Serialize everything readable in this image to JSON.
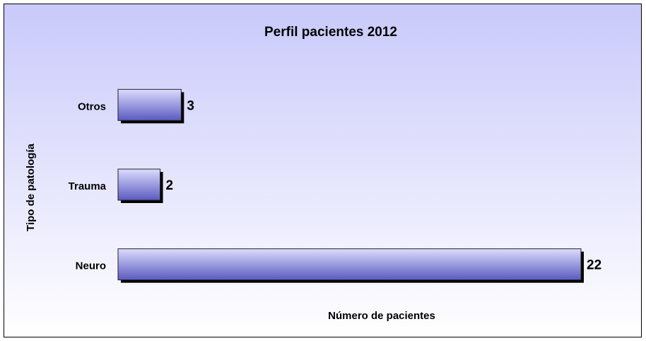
{
  "chart_data": {
    "type": "bar",
    "orientation": "horizontal",
    "title": "Perfil pacientes 2012",
    "categories": [
      "Neuro",
      "Trauma",
      "Otros"
    ],
    "values": [
      22,
      2,
      3
    ],
    "color": "#7b7bd6",
    "xlim": [
      0,
      22
    ],
    "x_label": "Número de pacientes",
    "y_label": "Tipo de patología",
    "grid": false
  }
}
